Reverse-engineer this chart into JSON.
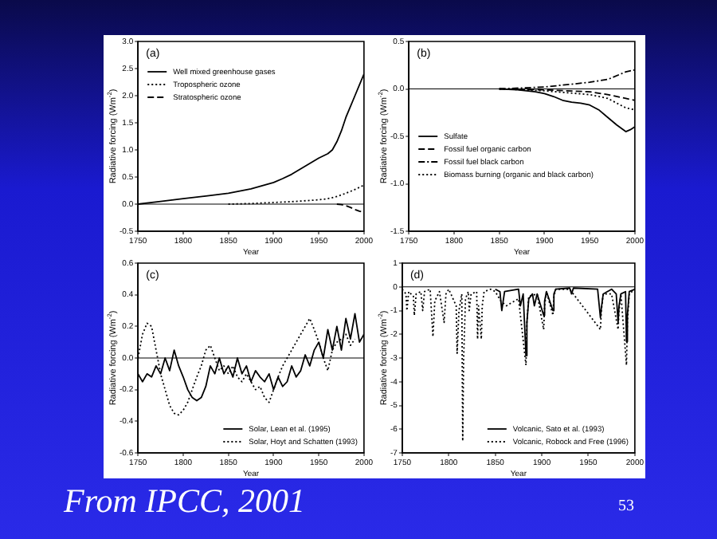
{
  "chart_data": [
    {
      "type": "line",
      "xlabel": "Year",
      "ylabel": "Radiative forcing (Wm$^{-2}$)",
      "annotations": [
        "(a)"
      ],
      "legend": "top left",
      "grid": false,
      "xlim": [
        1750,
        2000
      ],
      "xticks": [
        1750,
        1800,
        1850,
        1900,
        1950,
        2000
      ],
      "ylim": [
        -0.5,
        3.0
      ],
      "yticks": [
        -0.5,
        {
          "value": 0,
          "label": "0.0"
        },
        0.5,
        {
          "value": 1,
          "label": "1.0"
        },
        1.5,
        {
          "value": 2,
          "label": "2.0"
        },
        2.5,
        {
          "value": 3,
          "label": "3.0"
        }
      ],
      "ref_lines": [
        {
          "axis": "y",
          "value": 0,
          "color": "#000000"
        }
      ],
      "series": [
        {
          "name": "Well mixed greenhouse gases",
          "color": "#000000",
          "line_style": "solid",
          "x": [
            1750,
            1775,
            1800,
            1825,
            1850,
            1875,
            1900,
            1910,
            1920,
            1930,
            1940,
            1950,
            1960,
            1965,
            1970,
            1975,
            1980,
            1985,
            1990,
            1995,
            2000
          ],
          "values": [
            0,
            0.05,
            0.1,
            0.15,
            0.2,
            0.28,
            0.4,
            0.47,
            0.55,
            0.65,
            0.75,
            0.85,
            0.93,
            1.0,
            1.15,
            1.35,
            1.6,
            1.8,
            2.0,
            2.2,
            2.4
          ]
        },
        {
          "name": "Tropospheric ozone",
          "color": "#000000",
          "line_style": "dotted",
          "x": [
            1850,
            1875,
            1900,
            1925,
            1950,
            1960,
            1970,
            1980,
            1990,
            2000
          ],
          "values": [
            0,
            0.01,
            0.03,
            0.05,
            0.08,
            0.1,
            0.14,
            0.2,
            0.27,
            0.35
          ]
        },
        {
          "name": "Stratospheric ozone",
          "color": "#000000",
          "line_style": "dashed",
          "x": [
            1970,
            1975,
            1980,
            1985,
            1990,
            1995,
            2000
          ],
          "values": [
            0,
            -0.01,
            -0.03,
            -0.06,
            -0.1,
            -0.13,
            -0.15
          ]
        }
      ]
    },
    {
      "type": "line",
      "xlabel": "Year",
      "ylabel": "Radiative forcing (Wm$^{-2}$)",
      "annotations": [
        "(b)"
      ],
      "legend": "left",
      "grid": false,
      "xlim": [
        1750,
        2000
      ],
      "xticks": [
        1750,
        1800,
        1850,
        1900,
        1950,
        2000
      ],
      "ylim": [
        -1.5,
        0.5
      ],
      "yticks": [
        -1.5,
        {
          "value": -1,
          "label": "-1.0"
        },
        -0.5,
        {
          "value": 0,
          "label": "0.0"
        },
        0.5
      ],
      "ref_lines": [
        {
          "axis": "y",
          "value": 0,
          "color": "#000000"
        }
      ],
      "series": [
        {
          "name": "Sulfate",
          "color": "#000000",
          "line_style": "solid",
          "x": [
            1850,
            1870,
            1890,
            1900,
            1910,
            1920,
            1930,
            1940,
            1950,
            1960,
            1970,
            1980,
            1990,
            1995,
            2000
          ],
          "values": [
            0,
            -0.01,
            -0.03,
            -0.05,
            -0.08,
            -0.12,
            -0.14,
            -0.15,
            -0.17,
            -0.22,
            -0.3,
            -0.38,
            -0.45,
            -0.43,
            -0.4
          ]
        },
        {
          "name": "Fossil fuel organic carbon",
          "color": "#000000",
          "line_style": "dashed",
          "x": [
            1850,
            1900,
            1950,
            1970,
            1990,
            2000
          ],
          "values": [
            0,
            -0.01,
            -0.03,
            -0.06,
            -0.1,
            -0.12
          ]
        },
        {
          "name": "Fossil fuel black carbon",
          "color": "#000000",
          "line_style": "dashdot",
          "x": [
            1850,
            1900,
            1950,
            1970,
            1990,
            2000
          ],
          "values": [
            0,
            0.02,
            0.07,
            0.1,
            0.18,
            0.2
          ]
        },
        {
          "name": "Biomass burning (organic and black carbon)",
          "color": "#000000",
          "line_style": "dotted",
          "x": [
            1850,
            1900,
            1950,
            1970,
            1990,
            2000
          ],
          "values": [
            0,
            -0.02,
            -0.06,
            -0.1,
            -0.2,
            -0.22
          ]
        }
      ]
    },
    {
      "type": "line",
      "xlabel": "Year",
      "ylabel": "Radiative forcing (Wm$^{-2}$)",
      "annotations": [
        "(c)"
      ],
      "legend": "bottom right",
      "grid": false,
      "xlim": [
        1750,
        2000
      ],
      "xticks": [
        1750,
        1800,
        1850,
        1900,
        1950,
        2000
      ],
      "ylim": [
        -0.6,
        0.6
      ],
      "yticks": [
        -0.6,
        -0.4,
        -0.2,
        {
          "value": 0,
          "label": "0.0"
        },
        0.2,
        0.4,
        0.6
      ],
      "ref_lines": [
        {
          "axis": "y",
          "value": 0,
          "color": "#000000"
        }
      ],
      "series": [
        {
          "name": "Solar, Lean et al. (1995)",
          "color": "#000000",
          "line_style": "solid",
          "x": [
            1750,
            1755,
            1760,
            1765,
            1770,
            1775,
            1780,
            1785,
            1790,
            1795,
            1800,
            1805,
            1810,
            1815,
            1820,
            1825,
            1830,
            1835,
            1840,
            1845,
            1850,
            1855,
            1860,
            1865,
            1870,
            1875,
            1880,
            1885,
            1890,
            1895,
            1900,
            1905,
            1910,
            1915,
            1920,
            1925,
            1930,
            1935,
            1940,
            1945,
            1950,
            1955,
            1960,
            1965,
            1970,
            1975,
            1980,
            1985,
            1990,
            1995,
            2000
          ],
          "values": [
            -0.1,
            -0.15,
            -0.1,
            -0.12,
            -0.05,
            -0.1,
            0.0,
            -0.08,
            0.05,
            -0.05,
            -0.12,
            -0.2,
            -0.25,
            -0.27,
            -0.25,
            -0.18,
            -0.05,
            -0.1,
            0.0,
            -0.1,
            -0.05,
            -0.12,
            0.0,
            -0.1,
            -0.05,
            -0.15,
            -0.08,
            -0.12,
            -0.15,
            -0.1,
            -0.2,
            -0.12,
            -0.18,
            -0.15,
            -0.05,
            -0.12,
            -0.08,
            0.02,
            -0.05,
            0.05,
            0.1,
            0.0,
            0.18,
            0.05,
            0.2,
            0.05,
            0.25,
            0.12,
            0.28,
            0.1,
            0.15
          ]
        },
        {
          "name": "Solar, Hoyt and Schatten (1993)",
          "color": "#000000",
          "line_style": "dotted",
          "x": [
            1750,
            1755,
            1760,
            1765,
            1770,
            1775,
            1780,
            1785,
            1790,
            1795,
            1800,
            1805,
            1810,
            1815,
            1820,
            1825,
            1830,
            1835,
            1840,
            1845,
            1850,
            1855,
            1860,
            1865,
            1870,
            1875,
            1880,
            1885,
            1890,
            1895,
            1900,
            1905,
            1910,
            1915,
            1920,
            1925,
            1930,
            1935,
            1940,
            1945,
            1950,
            1955,
            1960,
            1965,
            1970,
            1975,
            1980,
            1985,
            1990
          ],
          "values": [
            0.0,
            0.15,
            0.22,
            0.2,
            0.05,
            -0.1,
            -0.2,
            -0.3,
            -0.35,
            -0.36,
            -0.33,
            -0.28,
            -0.2,
            -0.12,
            -0.05,
            0.05,
            0.08,
            0.0,
            -0.08,
            -0.05,
            -0.1,
            -0.05,
            -0.12,
            -0.15,
            -0.1,
            -0.15,
            -0.2,
            -0.18,
            -0.25,
            -0.28,
            -0.2,
            -0.12,
            -0.05,
            0.0,
            0.05,
            0.1,
            0.15,
            0.2,
            0.25,
            0.18,
            0.1,
            0.0,
            -0.08,
            0.05,
            0.1,
            0.12,
            0.15,
            0.08,
            0.12
          ]
        }
      ]
    },
    {
      "type": "line",
      "xlabel": "Year",
      "ylabel": "Radiative forcing (Wm$^{-2}$)",
      "annotations": [
        "(d)",
        "From IPCC, 2001",
        "53"
      ],
      "legend": "bottom right",
      "grid": false,
      "xlim": [
        1750,
        2000
      ],
      "xticks": [
        1750,
        1800,
        1850,
        1900,
        1950,
        2000
      ],
      "ylim": [
        -7,
        1
      ],
      "yticks": [
        -7,
        -6,
        -5,
        -4,
        -3,
        -2,
        -1,
        0,
        1
      ],
      "ref_lines": [
        {
          "axis": "y",
          "value": 0,
          "color": "#000000"
        }
      ],
      "series": [
        {
          "name": "Volcanic, Sato et al. (1993)",
          "color": "#000000",
          "line_style": "solid",
          "x": [
            1850,
            1855,
            1857,
            1860,
            1875,
            1877,
            1880,
            1883,
            1884,
            1886,
            1890,
            1892,
            1895,
            1902,
            1903,
            1905,
            1912,
            1913,
            1915,
            1930,
            1932,
            1934,
            1960,
            1963,
            1964,
            1966,
            1975,
            1980,
            1982,
            1983,
            1985,
            1990,
            1991,
            1992,
            1994,
            2000
          ],
          "values": [
            -0.1,
            -0.2,
            -1.0,
            -0.2,
            -0.1,
            -0.8,
            -0.3,
            -2.9,
            -1.5,
            -0.5,
            -0.3,
            -0.8,
            -0.3,
            -1.2,
            -0.6,
            -0.2,
            -1.0,
            -0.3,
            -0.1,
            -0.05,
            -0.3,
            -0.05,
            -0.1,
            -1.3,
            -0.9,
            -0.3,
            -0.1,
            -0.3,
            -1.5,
            -0.8,
            -0.3,
            -0.2,
            -2.3,
            -1.2,
            -0.2,
            -0.1
          ]
        },
        {
          "name": "Volcanic, Robock and Free (1996)",
          "color": "#000000",
          "line_style": "dotted",
          "x": [
            1750,
            1754,
            1755,
            1757,
            1762,
            1763,
            1765,
            1770,
            1772,
            1774,
            1780,
            1783,
            1785,
            1790,
            1795,
            1797,
            1800,
            1808,
            1809,
            1811,
            1814,
            1815,
            1816,
            1818,
            1821,
            1822,
            1824,
            1830,
            1831,
            1832,
            1835,
            1836,
            1838,
            1845,
            1850,
            1856,
            1862,
            1875,
            1883,
            1884,
            1886,
            1895,
            1902,
            1903,
            1905,
            1912,
            1913,
            1915,
            1930,
            1963,
            1964,
            1966,
            1975,
            1982,
            1983,
            1985,
            1991,
            1992,
            1994,
            2000
          ],
          "values": [
            -0.1,
            -0.3,
            -1.0,
            -0.2,
            -0.4,
            -1.2,
            -0.3,
            -0.2,
            -1.0,
            -0.2,
            -0.1,
            -2.1,
            -0.6,
            -0.2,
            -1.5,
            -0.3,
            -0.1,
            -0.8,
            -2.8,
            -1.0,
            -0.3,
            -6.5,
            -3.0,
            -0.5,
            -0.2,
            -1.0,
            -0.3,
            -0.2,
            -2.2,
            -0.8,
            -2.2,
            -0.8,
            -0.2,
            -0.1,
            -0.2,
            -0.6,
            -0.8,
            -0.5,
            -3.3,
            -1.5,
            -0.4,
            -0.3,
            -1.8,
            -0.8,
            -0.2,
            -1.2,
            -0.4,
            -0.1,
            -0.1,
            -1.8,
            -1.0,
            -0.3,
            -0.3,
            -1.8,
            -1.0,
            -0.3,
            -3.3,
            -1.5,
            -0.3,
            -0.1
          ]
        }
      ]
    }
  ]
}
